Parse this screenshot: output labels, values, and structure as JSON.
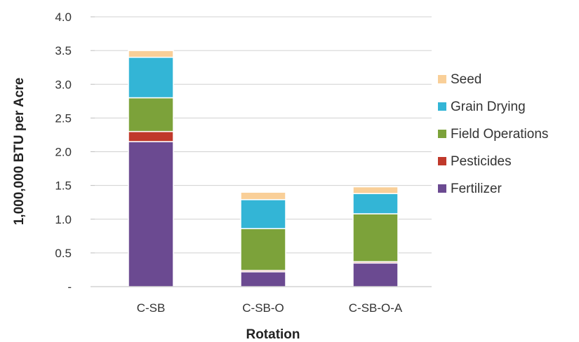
{
  "chart_data": {
    "type": "bar",
    "stacked": true,
    "categories": [
      "C-SB",
      "C-SB-O",
      "C-SB-O-A"
    ],
    "series": [
      {
        "name": "Fertilizer",
        "color": "#6b4a91",
        "values": [
          2.15,
          0.22,
          0.35
        ]
      },
      {
        "name": "Pesticides",
        "color": "#c0392b",
        "values": [
          0.15,
          0.02,
          0.02
        ]
      },
      {
        "name": "Field Operations",
        "color": "#7ca23a",
        "values": [
          0.5,
          0.62,
          0.71
        ]
      },
      {
        "name": "Grain Drying",
        "color": "#33b5d6",
        "values": [
          0.6,
          0.43,
          0.3
        ]
      },
      {
        "name": "Seed",
        "color": "#f9cf98",
        "values": [
          0.1,
          0.11,
          0.1
        ]
      }
    ],
    "legend_order": [
      "Seed",
      "Grain Drying",
      "Field Operations",
      "Pesticides",
      "Fertilizer"
    ],
    "legend_position": "right",
    "xlabel": "Rotation",
    "ylabel": "1,000,000 BTU per Acre",
    "ylim": [
      0,
      4
    ],
    "yticks": [
      0,
      0.5,
      1.0,
      1.5,
      2.0,
      2.5,
      3.0,
      3.5,
      4.0
    ],
    "ytick_labels": [
      "-",
      "0.5",
      "1.0",
      "1.5",
      "2.0",
      "2.5",
      "3.0",
      "3.5",
      "4.0"
    ],
    "grid": "horizontal"
  }
}
